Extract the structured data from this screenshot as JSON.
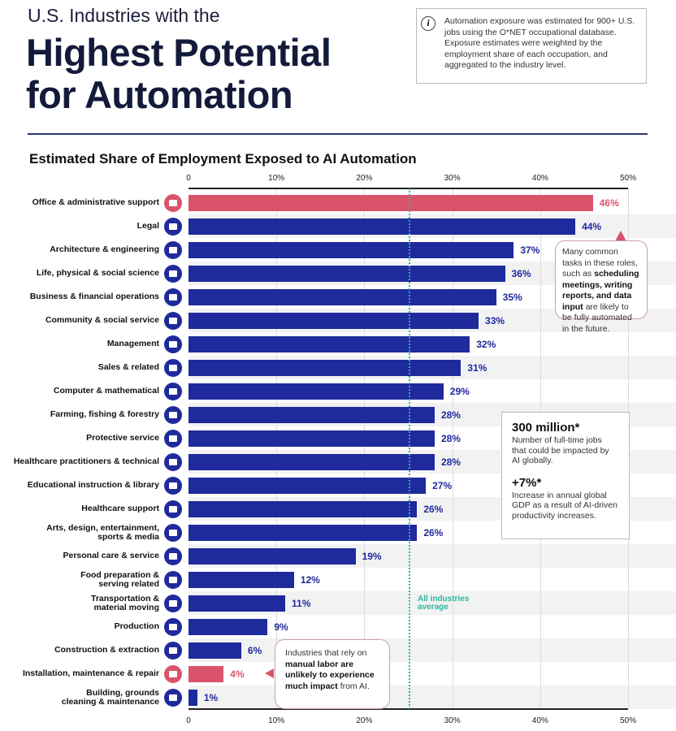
{
  "header": {
    "supertitle": "U.S. Industries with the",
    "title_line1": "Highest Potential",
    "title_line2": "for Automation"
  },
  "info": {
    "icon": "info-icon",
    "text": "Automation exposure was estimated for 900+ U.S. jobs using the O*NET occupational database. Exposure estimates were weighted by the employment share of each occupation, and aggregated to the industry level."
  },
  "callouts": {
    "office": {
      "pre": "Many common tasks in these roles, such as ",
      "bold": "scheduling meetings, writing reports, and data input",
      "post": " are likely to be fully automated in the future."
    },
    "manual": {
      "pre": "Industries that rely on ",
      "bold": "manual labor are unlikely to experience much impact",
      "post": " from AI."
    },
    "stats": {
      "big1": "300 million*",
      "text1": "Number of full-time jobs that could be impacted by AI globally.",
      "big2": "+7%*",
      "text2": "Increase in annual global GDP as a result of AI-driven productivity increases."
    },
    "average": "All industries\naverage"
  },
  "chart_data": {
    "type": "bar",
    "orientation": "horizontal",
    "title": "Estimated Share of Employment Exposed to AI Automation",
    "xlim": [
      0,
      50
    ],
    "xticks": [
      "0",
      "10%",
      "20%",
      "30%",
      "40%",
      "50%"
    ],
    "grid": true,
    "average_line": 25,
    "colors": {
      "default": "#1f2a9c",
      "highlight": "#d9546a",
      "average": "#2bb5a0"
    },
    "categories": [
      "Office & administrative support",
      "Legal",
      "Architecture & engineering",
      "Life, physical & social science",
      "Business & financial operations",
      "Community & social service",
      "Management",
      "Sales & related",
      "Computer & mathematical",
      "Farming, fishing & forestry",
      "Protective service",
      "Healthcare practitioners & technical",
      "Educational instruction & library",
      "Healthcare support",
      "Arts, design, entertainment,\nsports & media",
      "Personal care & service",
      "Food preparation &\nserving related",
      "Transportation &\nmaterial moving",
      "Production",
      "Construction & extraction",
      "Installation, maintenance & repair",
      "Building, grounds\ncleaning & maintenance"
    ],
    "values": [
      46,
      44,
      37,
      36,
      35,
      33,
      32,
      31,
      29,
      28,
      28,
      28,
      27,
      26,
      26,
      19,
      12,
      11,
      9,
      6,
      4,
      1
    ],
    "value_labels": [
      "46%",
      "44%",
      "37%",
      "36%",
      "35%",
      "33%",
      "32%",
      "31%",
      "29%",
      "28%",
      "28%",
      "28%",
      "27%",
      "26%",
      "26%",
      "19%",
      "12%",
      "11%",
      "9%",
      "6%",
      "4%",
      "1%"
    ],
    "highlighted": [
      "Office & administrative support",
      "Installation, maintenance & repair"
    ],
    "icons": [
      "office-building-icon",
      "gavel-icon",
      "building-icon",
      "molecule-icon",
      "handshake-icon",
      "community-icon",
      "clipboard-icon",
      "sales-chart-icon",
      "computer-icon",
      "tractor-icon",
      "lock-icon",
      "stethoscope-icon",
      "graduation-cap-icon",
      "heart-monitor-icon",
      "theater-icon",
      "shopping-cart-icon",
      "food-tray-icon",
      "truck-icon",
      "factory-icon",
      "excavator-icon",
      "robot-arm-icon",
      "city-building-icon"
    ]
  }
}
